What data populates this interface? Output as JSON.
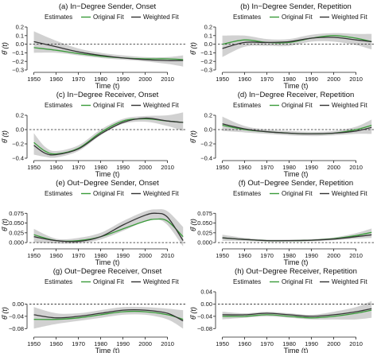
{
  "legend": {
    "title": "Estimates",
    "original": "Original Fit",
    "weighted": "Weighted Fit"
  },
  "colors": {
    "original": "#3a9b3a",
    "weighted": "#333333",
    "band": "#cccccc",
    "zero": "#222222"
  },
  "ylabel": "θ̂ (t)",
  "xlabel": "Time (t)",
  "chart_data": [
    {
      "type": "line",
      "title": "(a) In−Degree Sender, Onset",
      "ylim": [
        -0.3,
        0.2
      ],
      "yticks": [
        "0.2",
        "0.1",
        "0.0",
        "−0.1",
        "−0.2",
        "−0.3"
      ],
      "ytick_values": [
        0.2,
        0.1,
        0.0,
        -0.1,
        -0.2,
        -0.3
      ],
      "x": [
        1950,
        1960,
        1970,
        1980,
        1990,
        2000,
        2010,
        2017
      ],
      "series": [
        {
          "name": "Original Fit",
          "values": [
            -0.04,
            -0.07,
            -0.11,
            -0.14,
            -0.16,
            -0.17,
            -0.17,
            -0.18
          ]
        },
        {
          "name": "Weighted Fit",
          "values": [
            0.03,
            -0.03,
            -0.09,
            -0.13,
            -0.16,
            -0.18,
            -0.19,
            -0.19
          ]
        }
      ],
      "band": {
        "lower": [
          -0.1,
          -0.1,
          -0.13,
          -0.16,
          -0.18,
          -0.2,
          -0.23,
          -0.26
        ],
        "upper": [
          0.15,
          0.04,
          -0.05,
          -0.1,
          -0.13,
          -0.15,
          -0.15,
          -0.13
        ]
      }
    },
    {
      "type": "line",
      "title": "(b) In−Degree Sender, Repetition",
      "ylim": [
        -0.3,
        0.2
      ],
      "yticks": [
        "0.2",
        "0.1",
        "0.0",
        "−0.1",
        "−0.2",
        "−0.3"
      ],
      "ytick_values": [
        0.2,
        0.1,
        0.0,
        -0.1,
        -0.2,
        -0.3
      ],
      "x": [
        1950,
        1960,
        1970,
        1980,
        1990,
        2000,
        2010,
        2017
      ],
      "series": [
        {
          "name": "Original Fit",
          "values": [
            0.0,
            0.05,
            0.02,
            0.02,
            0.07,
            0.1,
            0.07,
            0.03
          ]
        },
        {
          "name": "Weighted Fit",
          "values": [
            -0.05,
            0.02,
            0.02,
            0.03,
            0.07,
            0.08,
            0.05,
            0.03
          ]
        }
      ],
      "band": {
        "lower": [
          -0.15,
          -0.03,
          -0.02,
          -0.02,
          0.03,
          0.03,
          -0.01,
          -0.06
        ],
        "upper": [
          0.1,
          0.1,
          0.06,
          0.06,
          0.11,
          0.13,
          0.12,
          0.12
        ]
      }
    },
    {
      "type": "line",
      "title": "(c) In−Degree Receiver, Onset",
      "ylim": [
        -0.4,
        0.2
      ],
      "yticks": [
        "0.2",
        "0.0",
        "−0.2",
        "−0.4"
      ],
      "ytick_values": [
        0.2,
        0.0,
        -0.2,
        -0.4
      ],
      "x": [
        1950,
        1955,
        1960,
        1970,
        1980,
        1990,
        2000,
        2010,
        2017
      ],
      "series": [
        {
          "name": "Original Fit",
          "values": [
            -0.18,
            -0.3,
            -0.34,
            -0.26,
            -0.04,
            0.12,
            0.15,
            0.12,
            0.1
          ]
        },
        {
          "name": "Weighted Fit",
          "values": [
            -0.22,
            -0.33,
            -0.35,
            -0.27,
            -0.06,
            0.1,
            0.16,
            0.12,
            0.1
          ]
        }
      ],
      "band": {
        "lower": [
          -0.35,
          -0.38,
          -0.39,
          -0.3,
          -0.08,
          0.08,
          0.11,
          0.05,
          -0.02
        ],
        "upper": [
          -0.05,
          -0.24,
          -0.3,
          -0.22,
          0.0,
          0.15,
          0.19,
          0.2,
          0.24
        ]
      }
    },
    {
      "type": "line",
      "title": "(d) In−Degree Receiver, Repetition",
      "ylim": [
        -0.4,
        0.2
      ],
      "yticks": [
        "0.2",
        "0.0",
        "−0.2",
        "−0.4"
      ],
      "ytick_values": [
        0.2,
        0.0,
        -0.2,
        -0.4
      ],
      "x": [
        1950,
        1960,
        1970,
        1980,
        1990,
        2000,
        2010,
        2017
      ],
      "series": [
        {
          "name": "Original Fit",
          "values": [
            0.06,
            0.0,
            -0.03,
            -0.05,
            -0.06,
            -0.05,
            0.0,
            0.06
          ]
        },
        {
          "name": "Weighted Fit",
          "values": [
            0.08,
            0.01,
            -0.03,
            -0.05,
            -0.06,
            -0.05,
            -0.02,
            0.03
          ]
        }
      ],
      "band": {
        "lower": [
          -0.02,
          -0.04,
          -0.06,
          -0.08,
          -0.09,
          -0.08,
          -0.06,
          -0.06
        ],
        "upper": [
          0.18,
          0.05,
          0.0,
          -0.02,
          -0.03,
          -0.02,
          0.04,
          0.14
        ]
      }
    },
    {
      "type": "line",
      "title": "(e) Out−Degree Sender, Onset",
      "ylim": [
        -0.01,
        0.1
      ],
      "yticks": [
        "0.075",
        "0.050",
        "0.025",
        "0.000"
      ],
      "ytick_values": [
        0.075,
        0.05,
        0.025,
        0.0
      ],
      "x": [
        1950,
        1960,
        1970,
        1980,
        1990,
        2000,
        2005,
        2010,
        2017
      ],
      "series": [
        {
          "name": "Original Fit",
          "values": [
            0.02,
            0.005,
            0.005,
            0.015,
            0.035,
            0.055,
            0.06,
            0.055,
            0.015
          ]
        },
        {
          "name": "Weighted Fit",
          "values": [
            0.015,
            0.005,
            0.003,
            0.015,
            0.045,
            0.07,
            0.075,
            0.065,
            0.005
          ]
        }
      ],
      "band": {
        "lower": [
          0.0,
          -0.002,
          -0.002,
          0.008,
          0.03,
          0.055,
          0.06,
          0.045,
          -0.01
        ],
        "upper": [
          0.035,
          0.01,
          0.012,
          0.025,
          0.055,
          0.08,
          0.085,
          0.08,
          0.04
        ]
      }
    },
    {
      "type": "line",
      "title": "(f) Out−Degree Sender, Repetition",
      "ylim": [
        -0.01,
        0.1
      ],
      "yticks": [
        "0.075",
        "0.050",
        "0.025",
        "0.000"
      ],
      "ytick_values": [
        0.075,
        0.05,
        0.025,
        0.0
      ],
      "x": [
        1950,
        1960,
        1970,
        1980,
        1990,
        2000,
        2010,
        2017
      ],
      "series": [
        {
          "name": "Original Fit",
          "values": [
            0.012,
            0.008,
            0.005,
            0.005,
            0.006,
            0.01,
            0.018,
            0.026
          ]
        },
        {
          "name": "Weighted Fit",
          "values": [
            0.012,
            0.008,
            0.005,
            0.005,
            0.006,
            0.009,
            0.015,
            0.02
          ]
        }
      ],
      "band": {
        "lower": [
          0.004,
          0.004,
          0.002,
          0.002,
          0.003,
          0.006,
          0.01,
          0.012
        ],
        "upper": [
          0.02,
          0.012,
          0.008,
          0.008,
          0.009,
          0.013,
          0.024,
          0.036
        ]
      }
    },
    {
      "type": "line",
      "title": "(g) Out−Degree Receiver, Onset",
      "ylim": [
        -0.1,
        0.04
      ],
      "yticks": [
        "0.00",
        "−0.04",
        "−0.08"
      ],
      "ytick_values": [
        0.0,
        -0.04,
        -0.08
      ],
      "x": [
        1950,
        1960,
        1970,
        1980,
        1990,
        2000,
        2010,
        2017
      ],
      "series": [
        {
          "name": "Original Fit",
          "values": [
            -0.05,
            -0.05,
            -0.045,
            -0.035,
            -0.025,
            -0.025,
            -0.035,
            -0.05
          ]
        },
        {
          "name": "Weighted Fit",
          "values": [
            -0.035,
            -0.045,
            -0.04,
            -0.03,
            -0.02,
            -0.02,
            -0.03,
            -0.055
          ]
        }
      ],
      "band": {
        "lower": [
          -0.08,
          -0.065,
          -0.055,
          -0.045,
          -0.035,
          -0.035,
          -0.05,
          -0.08
        ],
        "upper": [
          -0.01,
          -0.03,
          -0.03,
          -0.02,
          -0.01,
          -0.01,
          -0.015,
          -0.02
        ]
      }
    },
    {
      "type": "line",
      "title": "(h) Out−Degree Receiver, Repetition",
      "ylim": [
        -0.1,
        0.04
      ],
      "yticks": [
        "0.04",
        "0.00",
        "−0.04",
        "−0.08"
      ],
      "ytick_values": [
        0.04,
        0.0,
        -0.04,
        -0.08
      ],
      "x": [
        1950,
        1960,
        1970,
        1980,
        1990,
        2000,
        2010,
        2017
      ],
      "series": [
        {
          "name": "Original Fit",
          "values": [
            -0.04,
            -0.04,
            -0.035,
            -0.04,
            -0.045,
            -0.04,
            -0.03,
            -0.02
          ]
        },
        {
          "name": "Weighted Fit",
          "values": [
            -0.035,
            -0.035,
            -0.03,
            -0.035,
            -0.04,
            -0.035,
            -0.025,
            -0.015
          ]
        }
      ],
      "band": {
        "lower": [
          -0.05,
          -0.045,
          -0.04,
          -0.045,
          -0.05,
          -0.05,
          -0.05,
          -0.045
        ],
        "upper": [
          -0.025,
          -0.03,
          -0.025,
          -0.03,
          -0.035,
          -0.025,
          -0.01,
          0.01
        ]
      }
    }
  ],
  "xticks": [
    "1950",
    "1960",
    "1970",
    "1980",
    "1990",
    "2000",
    "2010"
  ],
  "xtick_values": [
    1950,
    1960,
    1970,
    1980,
    1990,
    2000,
    2010
  ],
  "xlim": [
    1948,
    2018
  ]
}
